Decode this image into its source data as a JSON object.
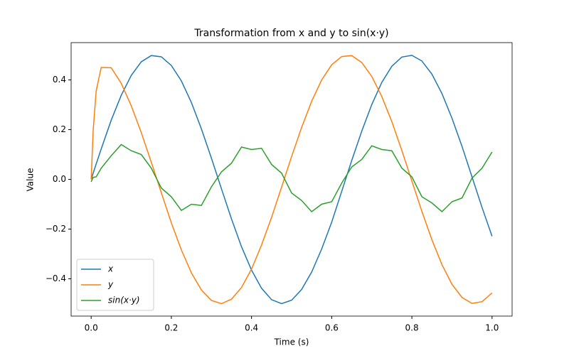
{
  "chart_data": {
    "type": "line",
    "title": "Transformation from x and y to sin(x·y)",
    "x_label": "Time (s)",
    "y_label": "Value",
    "x": [
      0,
      0.005,
      0.0125,
      0.025,
      0.05,
      0.075,
      0.1,
      0.125,
      0.15,
      0.175,
      0.2,
      0.225,
      0.25,
      0.275,
      0.3,
      0.325,
      0.35,
      0.375,
      0.4,
      0.425,
      0.45,
      0.475,
      0.5,
      0.525,
      0.55,
      0.575,
      0.6,
      0.625,
      0.65,
      0.675,
      0.7,
      0.725,
      0.75,
      0.775,
      0.8,
      0.825,
      0.85,
      0.875,
      0.9,
      0.925,
      0.95,
      0.975,
      1
    ],
    "series": [
      {
        "name": "x",
        "color": "#1f77b4",
        "values": [
          0,
          0.025,
          0.062,
          0.122,
          0.238,
          0.338,
          0.418,
          0.473,
          0.498,
          0.493,
          0.458,
          0.396,
          0.309,
          0.203,
          0.085,
          -0.038,
          -0.159,
          -0.271,
          -0.365,
          -0.438,
          -0.484,
          -0.5,
          -0.486,
          -0.443,
          -0.373,
          -0.28,
          -0.172,
          -0.048,
          0.076,
          0.194,
          0.301,
          0.39,
          0.455,
          0.492,
          0.499,
          0.476,
          0.423,
          0.345,
          0.246,
          0.133,
          0.01,
          -0.113,
          -0.229
        ]
      },
      {
        "name": "y",
        "color": "#ff7f0e",
        "values": [
          0,
          0.197,
          0.356,
          0.45,
          0.449,
          0.386,
          0.296,
          0.188,
          0.069,
          -0.054,
          -0.175,
          -0.284,
          -0.376,
          -0.445,
          -0.487,
          -0.5,
          -0.482,
          -0.435,
          -0.361,
          -0.264,
          -0.153,
          -0.031,
          0.092,
          0.209,
          0.314,
          0.4,
          0.461,
          0.494,
          0.498,
          0.47,
          0.414,
          0.333,
          0.232,
          0.116,
          -0.007,
          -0.129,
          -0.243,
          -0.343,
          -0.422,
          -0.475,
          -0.499,
          -0.492,
          -0.457
        ]
      },
      {
        "name": "sin(x·y)",
        "color": "#2ca02c",
        "values": [
          -0.01,
          0.008,
          0.01,
          0.045,
          0.095,
          0.14,
          0.115,
          0.1,
          0.045,
          -0.035,
          -0.07,
          -0.125,
          -0.1,
          -0.105,
          -0.03,
          0.03,
          0.065,
          0.13,
          0.12,
          0.125,
          0.06,
          0.025,
          -0.055,
          -0.085,
          -0.13,
          -0.1,
          -0.09,
          -0.015,
          0.05,
          0.08,
          0.135,
          0.12,
          0.115,
          0.045,
          0.01,
          -0.07,
          -0.095,
          -0.13,
          -0.09,
          -0.075,
          0.005,
          0.045,
          0.11
        ]
      }
    ],
    "xlim": [
      -0.05,
      1.05
    ],
    "xticks": [
      {
        "value": 0,
        "label": "0.0"
      },
      0.2,
      0.4,
      0.6,
      0.8,
      {
        "value": 1,
        "label": "1.0"
      }
    ],
    "ylim": [
      -0.55,
      0.55
    ],
    "yticks": [
      {
        "value": -0.4,
        "label": "−0.4"
      },
      {
        "value": -0.2,
        "label": "−0.2"
      },
      {
        "value": 0,
        "label": "0.0"
      },
      0.2,
      0.4
    ],
    "legend": "lower left",
    "grid": false
  }
}
